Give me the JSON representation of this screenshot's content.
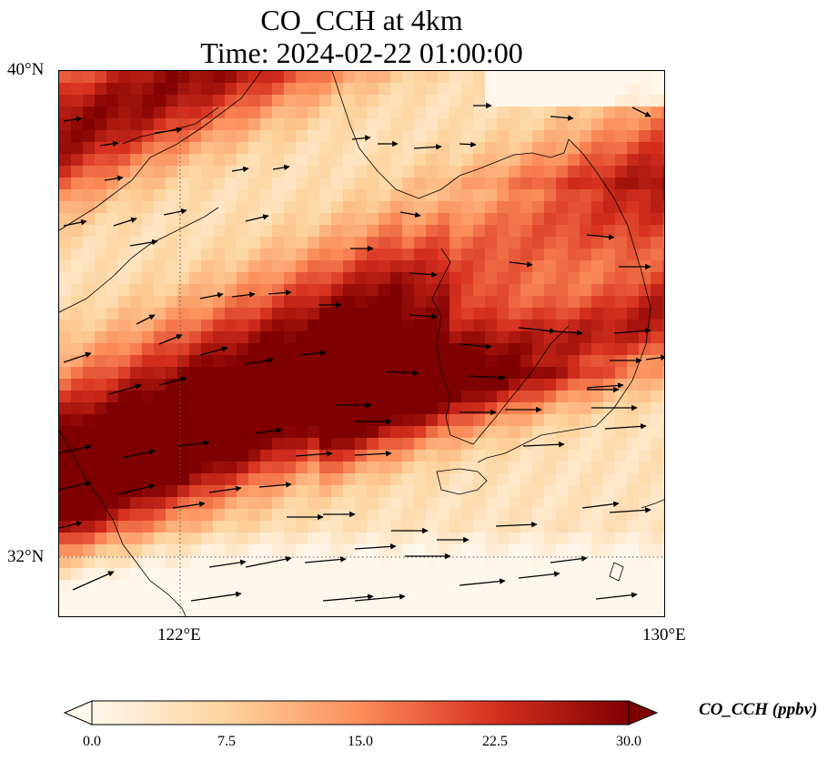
{
  "title": {
    "line1": "CO_CCH at 4km",
    "line2": "Time: 2024-02-22 01:00:00"
  },
  "map": {
    "lat_labels": [
      "40°N",
      "32°N"
    ],
    "lon_labels": [
      "122°E",
      "130°E"
    ],
    "lat_range": [
      31,
      40
    ],
    "lon_range": [
      120,
      130
    ],
    "gridlines": "dotted",
    "field": "CO_CCH",
    "wind_vectors": true
  },
  "colorbar": {
    "label": "CO_CCH (ppbv)",
    "ticks": [
      "0.0",
      "7.5",
      "15.0",
      "22.5",
      "30.0"
    ],
    "range": [
      0,
      30
    ],
    "extend": "both",
    "colormap": [
      "#fff7ec",
      "#fdd49e",
      "#fc8d59",
      "#d7301f",
      "#7f0000"
    ]
  }
}
